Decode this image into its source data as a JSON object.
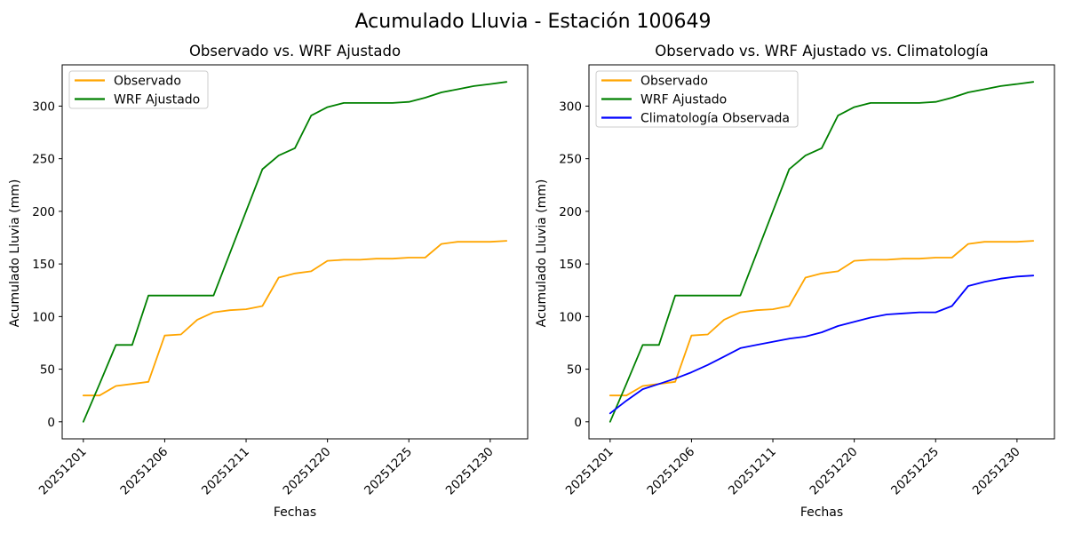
{
  "figure": {
    "title": "Acumulado Lluvia - Estación 100649"
  },
  "colors": {
    "observado": "#FFA500",
    "wrf_ajustado": "#008000",
    "climatologia_observada": "#0000FF",
    "text": "#000000",
    "spine": "#000000",
    "legend_border": "#CCCCCC",
    "background": "#FFFFFF"
  },
  "chart_data": [
    {
      "type": "line",
      "title": "Observado vs. WRF Ajustado",
      "xlabel": "Fechas",
      "ylabel": "Acumulado Lluvia (mm)",
      "grid": false,
      "legend_position": "upper left",
      "xlim": [
        -1.3,
        27.3
      ],
      "ylim": [
        -16.2,
        339.2
      ],
      "x": [
        0,
        1,
        2,
        3,
        4,
        5,
        6,
        7,
        8,
        9,
        10,
        11,
        12,
        13,
        14,
        15,
        16,
        17,
        18,
        19,
        20,
        21,
        22,
        23,
        24,
        25,
        26
      ],
      "xticks": {
        "positions": [
          0,
          5,
          10,
          15,
          20,
          25
        ],
        "labels": [
          "20251201",
          "20251206",
          "20251211",
          "20251220",
          "20251225",
          "20251230"
        ],
        "rotation": 45
      },
      "yticks": [
        0,
        50,
        100,
        150,
        200,
        250,
        300
      ],
      "series": [
        {
          "name": "Observado",
          "color": "#FFA500",
          "values": [
            25,
            25,
            34,
            36,
            38,
            82,
            83,
            97,
            104,
            106,
            107,
            110,
            137,
            141,
            143,
            153,
            154,
            154,
            155,
            155,
            156,
            156,
            169,
            171,
            171,
            171,
            172
          ]
        },
        {
          "name": "WRF Ajustado",
          "color": "#008000",
          "values": [
            0,
            36,
            73,
            73,
            120,
            120,
            120,
            120,
            120,
            160,
            200,
            240,
            253,
            260,
            291,
            299,
            303,
            303,
            303,
            303,
            304,
            308,
            313,
            316,
            319,
            321,
            323
          ]
        }
      ]
    },
    {
      "type": "line",
      "title": "Observado vs. WRF Ajustado vs. Climatología",
      "xlabel": "Fechas",
      "ylabel": "Acumulado Lluvia (mm)",
      "grid": false,
      "legend_position": "upper left",
      "xlim": [
        -1.3,
        27.3
      ],
      "ylim": [
        -16.2,
        339.2
      ],
      "x": [
        0,
        1,
        2,
        3,
        4,
        5,
        6,
        7,
        8,
        9,
        10,
        11,
        12,
        13,
        14,
        15,
        16,
        17,
        18,
        19,
        20,
        21,
        22,
        23,
        24,
        25,
        26
      ],
      "xticks": {
        "positions": [
          0,
          5,
          10,
          15,
          20,
          25
        ],
        "labels": [
          "20251201",
          "20251206",
          "20251211",
          "20251220",
          "20251225",
          "20251230"
        ],
        "rotation": 45
      },
      "yticks": [
        0,
        50,
        100,
        150,
        200,
        250,
        300
      ],
      "series": [
        {
          "name": "Observado",
          "color": "#FFA500",
          "values": [
            25,
            25,
            34,
            36,
            38,
            82,
            83,
            97,
            104,
            106,
            107,
            110,
            137,
            141,
            143,
            153,
            154,
            154,
            155,
            155,
            156,
            156,
            169,
            171,
            171,
            171,
            172
          ]
        },
        {
          "name": "WRF Ajustado",
          "color": "#008000",
          "values": [
            0,
            36,
            73,
            73,
            120,
            120,
            120,
            120,
            120,
            160,
            200,
            240,
            253,
            260,
            291,
            299,
            303,
            303,
            303,
            303,
            304,
            308,
            313,
            316,
            319,
            321,
            323
          ]
        },
        {
          "name": "Climatología Observada",
          "color": "#0000FF",
          "values": [
            8,
            20,
            31,
            36,
            41,
            47,
            54,
            62,
            70,
            73,
            76,
            79,
            81,
            85,
            91,
            95,
            99,
            102,
            103,
            104,
            104,
            110,
            129,
            133,
            136,
            138,
            139
          ]
        }
      ]
    }
  ]
}
